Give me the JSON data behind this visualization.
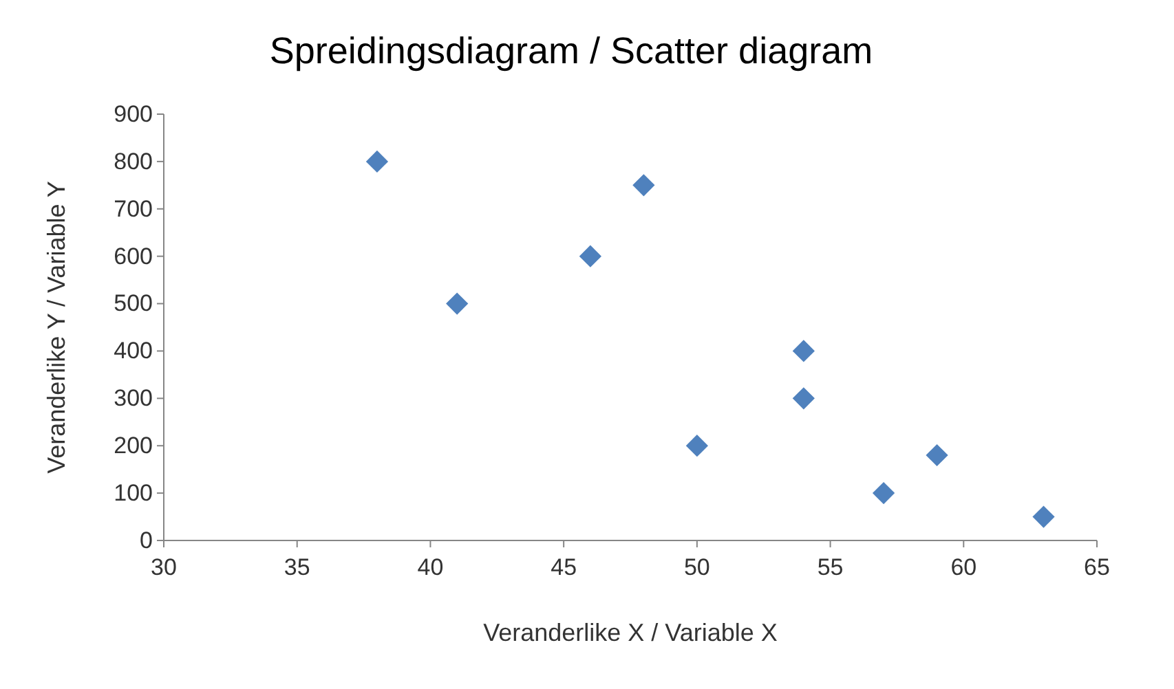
{
  "chart_data": {
    "type": "scatter",
    "title": "Spreidingsdiagram / Scatter diagram",
    "xlabel": "Veranderlike X / Variable X",
    "ylabel": "Veranderlike Y / Variable Y",
    "x": [
      38,
      41,
      46,
      48,
      54,
      54,
      50,
      57,
      59,
      63
    ],
    "series": [
      {
        "color": "#4f81bd",
        "values": [
          800,
          500,
          600,
          750,
          400,
          300,
          200,
          100,
          180,
          50
        ]
      }
    ],
    "xlim": [
      30,
      65
    ],
    "xticks": [
      30,
      35,
      40,
      45,
      50,
      55,
      60,
      65
    ],
    "ylim": [
      0,
      900
    ],
    "yticks": [
      0,
      100,
      200,
      300,
      400,
      500,
      600,
      700,
      800,
      900
    ],
    "grid": false,
    "marker": "diamond"
  }
}
